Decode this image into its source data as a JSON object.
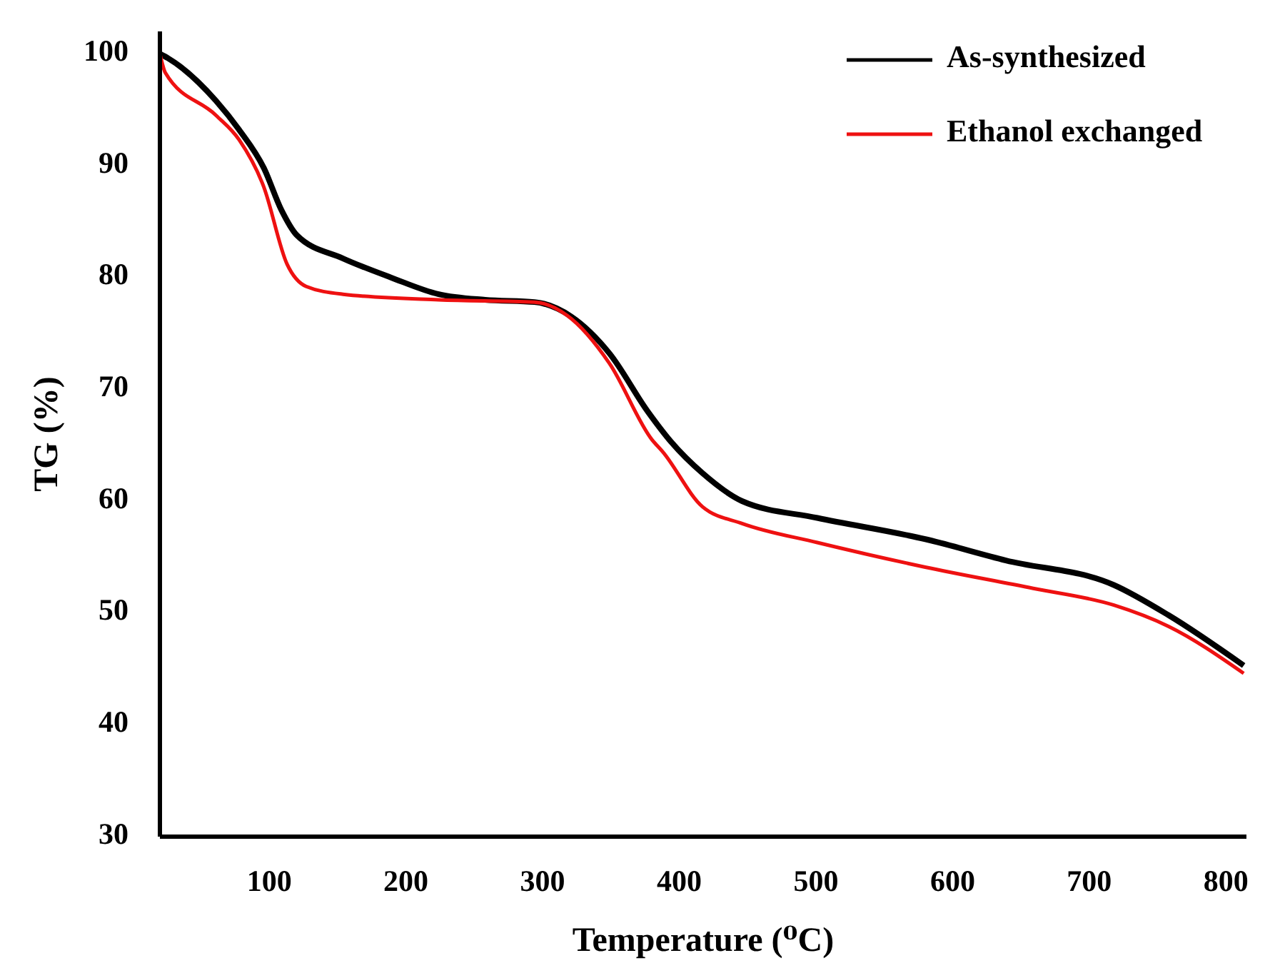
{
  "chart_data": {
    "type": "line",
    "xlabel": "Temperature (⁰C)",
    "ylabel": "TG (%)",
    "xlim": [
      20,
      815
    ],
    "ylim": [
      30,
      102
    ],
    "xticks": [
      100,
      200,
      300,
      400,
      500,
      600,
      700,
      800
    ],
    "yticks": [
      30,
      40,
      50,
      60,
      70,
      80,
      90,
      100
    ],
    "grid": false,
    "legend": "top right",
    "line_style": "solid",
    "marker": "none",
    "series": [
      {
        "name": "As-synthesized",
        "color": "#000000",
        "x": [
          20,
          26,
          61,
          78,
          96,
          109,
          120,
          154,
          189,
          224,
          258,
          294,
          321,
          349,
          377,
          394,
          417,
          446,
          501,
          580,
          639,
          718,
          758,
          813
        ],
        "values": [
          100,
          99.6,
          95.8,
          93.2,
          89.8,
          86,
          83.8,
          81.7,
          80,
          78.5,
          78,
          77.8,
          76.5,
          73.2,
          68,
          65.3,
          62.5,
          60,
          58.5,
          56.6,
          54.7,
          52.5,
          49.8,
          45.3
        ]
      },
      {
        "name": "Ethanol exchanged",
        "color": "#ee1111",
        "x": [
          20,
          24,
          61,
          78,
          96,
          113,
          127,
          154,
          224,
          294,
          318,
          349,
          380,
          388,
          417,
          446,
          501,
          580,
          659,
          718,
          758,
          813
        ],
        "values": [
          100,
          98.3,
          94.5,
          92.3,
          88.1,
          81.2,
          79.2,
          78.5,
          78,
          77.8,
          76.6,
          72.3,
          65.5,
          64.4,
          59.5,
          58,
          56.3,
          54.1,
          52.2,
          50.7,
          48.8,
          44.6
        ]
      }
    ]
  }
}
